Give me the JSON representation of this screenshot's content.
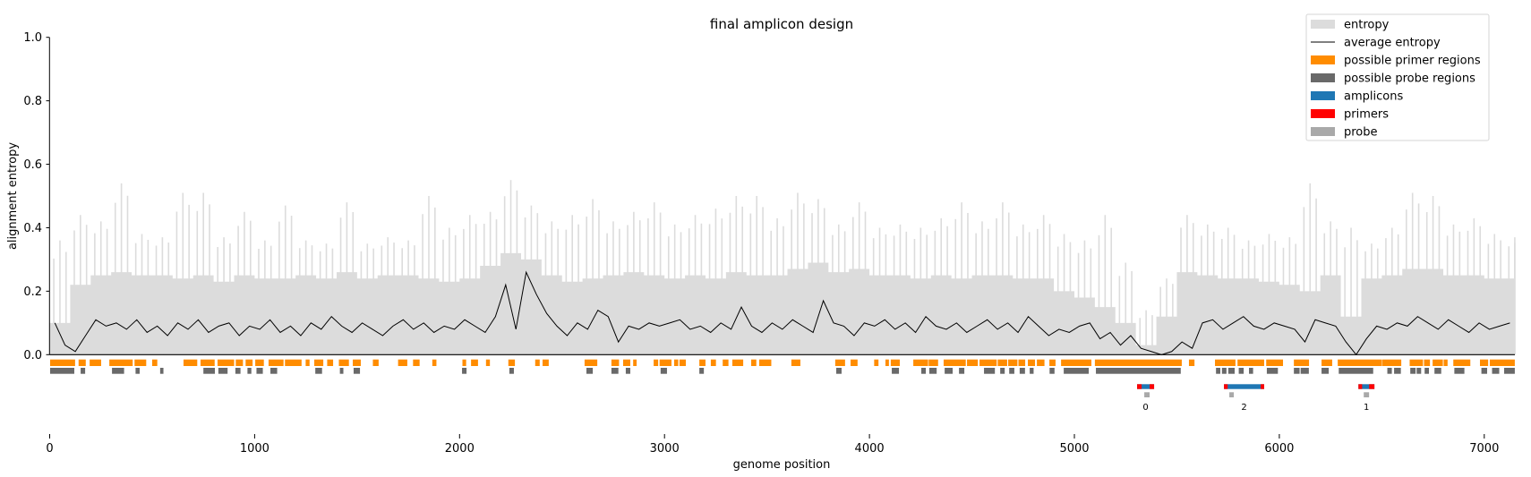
{
  "chart_data": {
    "type": "area",
    "title": "final amplicon design",
    "xlabel": "genome position",
    "ylabel": "alignment entropy",
    "xlim": [
      0,
      7150
    ],
    "ylim": [
      0,
      1.0
    ],
    "xticks": [
      "0",
      "1000",
      "2000",
      "3000",
      "4000",
      "5000",
      "6000",
      "7000"
    ],
    "yticks": [
      "0.0",
      "0.2",
      "0.4",
      "0.6",
      "0.8",
      "1.0"
    ],
    "grid": false,
    "legend_position": "top-right",
    "legend": [
      {
        "label": "entropy",
        "color": "#dcdcdc",
        "kind": "patch"
      },
      {
        "label": "average entropy",
        "color": "#000000",
        "kind": "line"
      },
      {
        "label": "possible primer regions",
        "color": "#ff8c00",
        "kind": "patch"
      },
      {
        "label": "possible probe regions",
        "color": "#696969",
        "kind": "patch"
      },
      {
        "label": "amplicons",
        "color": "#1f77b4",
        "kind": "patch"
      },
      {
        "label": "primers",
        "color": "#ff0000",
        "kind": "patch"
      },
      {
        "label": "probe",
        "color": "#a9a9a9",
        "kind": "patch"
      }
    ],
    "entropy": {
      "bin_size": 100,
      "peak": [
        0.36,
        0.44,
        0.42,
        0.54,
        0.38,
        0.37,
        0.51,
        0.51,
        0.37,
        0.45,
        0.36,
        0.47,
        0.36,
        0.35,
        0.48,
        0.35,
        0.37,
        0.36,
        0.5,
        0.4,
        0.44,
        0.45,
        0.55,
        0.47,
        0.42,
        0.44,
        0.49,
        0.42,
        0.45,
        0.48,
        0.41,
        0.44,
        0.46,
        0.5,
        0.5,
        0.43,
        0.51,
        0.49,
        0.41,
        0.48,
        0.4,
        0.41,
        0.4,
        0.43,
        0.48,
        0.42,
        0.48,
        0.41,
        0.44,
        0.38,
        0.36,
        0.44,
        0.29,
        0.14,
        0.24,
        0.44,
        0.41,
        0.4,
        0.36,
        0.38,
        0.37,
        0.54,
        0.42,
        0.4,
        0.35,
        0.4,
        0.51,
        0.5,
        0.41,
        0.43,
        0.38,
        0.37
      ],
      "typical": [
        0.1,
        0.22,
        0.25,
        0.26,
        0.25,
        0.25,
        0.24,
        0.25,
        0.23,
        0.25,
        0.24,
        0.24,
        0.25,
        0.24,
        0.26,
        0.24,
        0.25,
        0.25,
        0.24,
        0.23,
        0.24,
        0.28,
        0.32,
        0.3,
        0.25,
        0.23,
        0.24,
        0.25,
        0.26,
        0.25,
        0.24,
        0.25,
        0.24,
        0.26,
        0.25,
        0.25,
        0.27,
        0.29,
        0.26,
        0.27,
        0.25,
        0.25,
        0.24,
        0.25,
        0.24,
        0.25,
        0.25,
        0.24,
        0.24,
        0.2,
        0.18,
        0.15,
        0.1,
        0.03,
        0.12,
        0.26,
        0.25,
        0.24,
        0.24,
        0.23,
        0.22,
        0.2,
        0.25,
        0.12,
        0.24,
        0.25,
        0.27,
        0.27,
        0.25,
        0.25,
        0.24,
        0.24
      ]
    },
    "average_entropy": {
      "step": 50,
      "values": [
        0.1,
        0.03,
        0.01,
        0.06,
        0.11,
        0.09,
        0.1,
        0.08,
        0.11,
        0.07,
        0.09,
        0.06,
        0.1,
        0.08,
        0.11,
        0.07,
        0.09,
        0.1,
        0.06,
        0.09,
        0.08,
        0.11,
        0.07,
        0.09,
        0.06,
        0.1,
        0.08,
        0.12,
        0.09,
        0.07,
        0.1,
        0.08,
        0.06,
        0.09,
        0.11,
        0.08,
        0.1,
        0.07,
        0.09,
        0.08,
        0.11,
        0.09,
        0.07,
        0.12,
        0.22,
        0.08,
        0.26,
        0.19,
        0.13,
        0.09,
        0.06,
        0.1,
        0.08,
        0.14,
        0.12,
        0.04,
        0.09,
        0.08,
        0.1,
        0.09,
        0.1,
        0.11,
        0.08,
        0.09,
        0.07,
        0.1,
        0.08,
        0.15,
        0.09,
        0.07,
        0.1,
        0.08,
        0.11,
        0.09,
        0.07,
        0.17,
        0.1,
        0.09,
        0.06,
        0.1,
        0.09,
        0.11,
        0.08,
        0.1,
        0.07,
        0.12,
        0.09,
        0.08,
        0.1,
        0.07,
        0.09,
        0.11,
        0.08,
        0.1,
        0.07,
        0.12,
        0.09,
        0.06,
        0.08,
        0.07,
        0.09,
        0.1,
        0.05,
        0.07,
        0.03,
        0.06,
        0.02,
        0.01,
        0.0,
        0.01,
        0.04,
        0.02,
        0.1,
        0.11,
        0.08,
        0.1,
        0.12,
        0.09,
        0.08,
        0.1,
        0.09,
        0.08,
        0.04,
        0.11,
        0.1,
        0.09,
        0.04,
        0.0,
        0.05,
        0.09,
        0.08,
        0.1,
        0.09,
        0.12,
        0.1,
        0.08,
        0.11,
        0.09,
        0.07,
        0.1,
        0.08,
        0.09,
        0.1
      ]
    },
    "primer_regions": [
      [
        2,
        124
      ],
      [
        141,
        176
      ],
      [
        195,
        251
      ],
      [
        291,
        405
      ],
      [
        414,
        471
      ],
      [
        500,
        525
      ],
      [
        653,
        720
      ],
      [
        736,
        805
      ],
      [
        819,
        900
      ],
      [
        908,
        943
      ],
      [
        956,
        990
      ],
      [
        1003,
        1045
      ],
      [
        1068,
        1141
      ],
      [
        1148,
        1229
      ],
      [
        1249,
        1268
      ],
      [
        1291,
        1335
      ],
      [
        1354,
        1383
      ],
      [
        1411,
        1460
      ],
      [
        1479,
        1518
      ],
      [
        1577,
        1605
      ],
      [
        1700,
        1745
      ],
      [
        1773,
        1805
      ],
      [
        1867,
        1887
      ],
      [
        2014,
        2032
      ],
      [
        2056,
        2090
      ],
      [
        2129,
        2148
      ],
      [
        2238,
        2270
      ],
      [
        2369,
        2391
      ],
      [
        2405,
        2435
      ],
      [
        2610,
        2672
      ],
      [
        2741,
        2778
      ],
      [
        2798,
        2833
      ],
      [
        2847,
        2864
      ],
      [
        2947,
        2969
      ],
      [
        2976,
        3034
      ],
      [
        3047,
        3067
      ],
      [
        3073,
        3104
      ],
      [
        3170,
        3200
      ],
      [
        3226,
        3251
      ],
      [
        3284,
        3312
      ],
      [
        3331,
        3384
      ],
      [
        3423,
        3448
      ],
      [
        3462,
        3521
      ],
      [
        3619,
        3663
      ],
      [
        3833,
        3881
      ],
      [
        3908,
        3942
      ],
      [
        4023,
        4044
      ],
      [
        4078,
        4095
      ],
      [
        4104,
        4148
      ],
      [
        4214,
        4286
      ],
      [
        4289,
        4335
      ],
      [
        4362,
        4470
      ],
      [
        4476,
        4529
      ],
      [
        4537,
        4621
      ],
      [
        4626,
        4672
      ],
      [
        4677,
        4722
      ],
      [
        4727,
        4760
      ],
      [
        4773,
        4808
      ],
      [
        4817,
        4854
      ],
      [
        4878,
        4908
      ],
      [
        4935,
        5083
      ],
      [
        5100,
        5524
      ],
      [
        5559,
        5586
      ],
      [
        5686,
        5786
      ],
      [
        5796,
        5926
      ],
      [
        5936,
        6018
      ],
      [
        6071,
        6145
      ],
      [
        6206,
        6258
      ],
      [
        6285,
        6501
      ],
      [
        6503,
        6595
      ],
      [
        6636,
        6701
      ],
      [
        6706,
        6735
      ],
      [
        6748,
        6798
      ],
      [
        6802,
        6821
      ],
      [
        6849,
        6932
      ],
      [
        6979,
        7019
      ],
      [
        7027,
        7149
      ]
    ],
    "probe_regions": [
      [
        2,
        120
      ],
      [
        151,
        173
      ],
      [
        304,
        363
      ],
      [
        419,
        439
      ],
      [
        539,
        555
      ],
      [
        750,
        806
      ],
      [
        823,
        868
      ],
      [
        906,
        931
      ],
      [
        965,
        984
      ],
      [
        1009,
        1040
      ],
      [
        1077,
        1110
      ],
      [
        1296,
        1329
      ],
      [
        1416,
        1433
      ],
      [
        1483,
        1514
      ],
      [
        2012,
        2034
      ],
      [
        2243,
        2265
      ],
      [
        2619,
        2650
      ],
      [
        2741,
        2775
      ],
      [
        2811,
        2833
      ],
      [
        2981,
        3012
      ],
      [
        3170,
        3192
      ],
      [
        3838,
        3864
      ],
      [
        4109,
        4144
      ],
      [
        4253,
        4275
      ],
      [
        4292,
        4328
      ],
      [
        4367,
        4406
      ],
      [
        4437,
        4463
      ],
      [
        4559,
        4612
      ],
      [
        4638,
        4660
      ],
      [
        4682,
        4707
      ],
      [
        4733,
        4759
      ],
      [
        4782,
        4801
      ],
      [
        4879,
        4903
      ],
      [
        4948,
        5070
      ],
      [
        5105,
        5519
      ],
      [
        5691,
        5712
      ],
      [
        5720,
        5742
      ],
      [
        5751,
        5782
      ],
      [
        5802,
        5826
      ],
      [
        5852,
        5872
      ],
      [
        5939,
        5993
      ],
      [
        6071,
        6099
      ],
      [
        6104,
        6144
      ],
      [
        6206,
        6241
      ],
      [
        6290,
        6458
      ],
      [
        6527,
        6549
      ],
      [
        6560,
        6593
      ],
      [
        6639,
        6665
      ],
      [
        6670,
        6692
      ],
      [
        6709,
        6730
      ],
      [
        6757,
        6790
      ],
      [
        6854,
        6903
      ],
      [
        6986,
        7014
      ],
      [
        7038,
        7073
      ],
      [
        7097,
        7149
      ]
    ],
    "amplicons": [
      {
        "label": "0",
        "start": 5306,
        "end": 5389,
        "fwd_primer": [
          5306,
          5328
        ],
        "rev_primer": [
          5367,
          5389
        ],
        "probe": [
          5341,
          5367
        ]
      },
      {
        "label": "2",
        "start": 5730,
        "end": 5926,
        "fwd_primer": [
          5730,
          5748
        ],
        "rev_primer": [
          5909,
          5926
        ],
        "probe": [
          5756,
          5778
        ]
      },
      {
        "label": "1",
        "start": 6386,
        "end": 6464,
        "fwd_primer": [
          6386,
          6404
        ],
        "rev_primer": [
          6438,
          6464
        ],
        "probe": [
          6412,
          6438
        ]
      }
    ]
  }
}
